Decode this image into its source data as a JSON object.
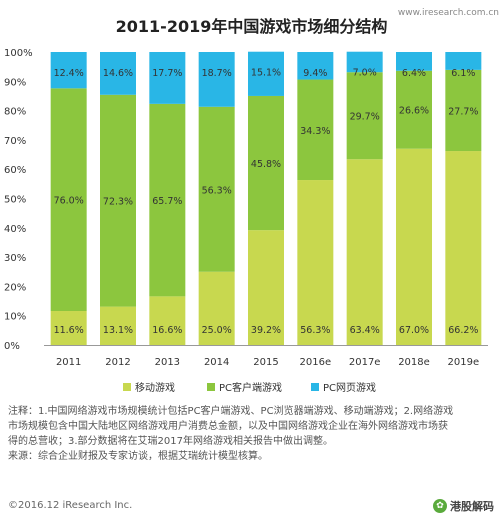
{
  "chart_data": {
    "type": "bar",
    "stacked": true,
    "percent_stacked": true,
    "title": "2011-2019年中国游戏市场细分结构",
    "categories": [
      "2011",
      "2012",
      "2013",
      "2014",
      "2015",
      "2016e",
      "2017e",
      "2018e",
      "2019e"
    ],
    "series": [
      {
        "name": "移动游戏",
        "color": "#c8d84f",
        "values": [
          11.6,
          13.1,
          16.6,
          25.0,
          39.2,
          56.3,
          63.4,
          67.0,
          66.2
        ]
      },
      {
        "name": "PC客户端游戏",
        "color": "#8cc63e",
        "values": [
          76.0,
          72.3,
          65.7,
          56.3,
          45.8,
          34.3,
          29.7,
          26.6,
          27.7
        ]
      },
      {
        "name": "PC网页游戏",
        "color": "#29b6e6",
        "values": [
          12.4,
          14.6,
          17.7,
          18.7,
          15.1,
          9.4,
          7.0,
          6.4,
          6.1
        ]
      }
    ],
    "y_ticks": [
      "0%",
      "10%",
      "20%",
      "30%",
      "40%",
      "50%",
      "60%",
      "70%",
      "80%",
      "90%",
      "100%"
    ],
    "ylim": [
      0,
      100
    ],
    "xlabel": "",
    "ylabel": "",
    "grid": false,
    "legend_position": "bottom"
  },
  "notes": [
    "注释：1.中国网络游戏市场规模统计包括PC客户端游戏、PC浏览器端游戏、移动端游戏；2.网络游戏",
    "市场规模包含中国大陆地区网络游戏用户消费总金额，以及中国网络游戏企业在海外网络游戏市场获",
    "得的总营收；3.部分数据将在艾瑞2017年网络游戏相关报告中做出调整。",
    "来源：综合企业财报及专家访谈，根据艾瑞统计模型核算。"
  ],
  "footer": {
    "copyright": "©2016.12 iResearch Inc.",
    "watermark": "港股解码",
    "site": "www.iresearch.com.cn"
  }
}
